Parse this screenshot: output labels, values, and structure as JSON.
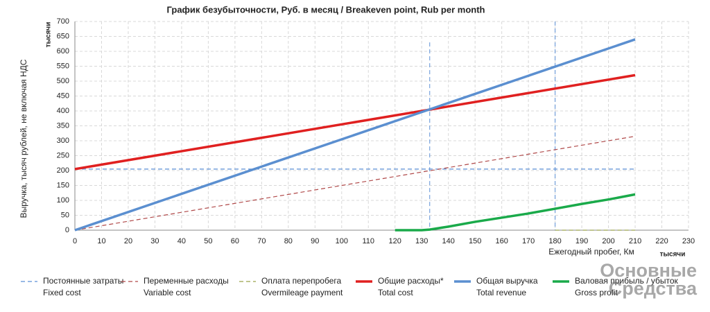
{
  "chart_data": {
    "type": "line",
    "title": "График безубыточности, Руб. в месяц / Breakeven point, Rub per month",
    "ylabel": "Выручка, тысяч рублей, не включая НДС",
    "yunit": "тысячи",
    "xlabel": "Ежегодный пробег, Км",
    "xunit": "тысячи",
    "xlim": [
      0,
      230
    ],
    "xticks": [
      0,
      10,
      20,
      30,
      40,
      50,
      60,
      70,
      80,
      90,
      100,
      110,
      120,
      130,
      140,
      150,
      160,
      170,
      180,
      190,
      200,
      210,
      220,
      230
    ],
    "ylim": [
      0,
      700
    ],
    "yticks": [
      0,
      50,
      100,
      150,
      200,
      250,
      300,
      350,
      400,
      450,
      500,
      550,
      600,
      650,
      700
    ],
    "grid": true,
    "vlines": [
      {
        "x": 133,
        "top": 630
      },
      {
        "x": 180,
        "top": 700
      }
    ],
    "series": [
      {
        "name": "Постоянные затраты",
        "name_en": "Fixed cost",
        "color": "#5b8fd6",
        "dash": true,
        "width": 1.2,
        "x": [
          0,
          210
        ],
        "values": [
          205,
          205
        ]
      },
      {
        "name": "Переменные расходы",
        "name_en": "Variable cost",
        "color": "#b04848",
        "dash": true,
        "width": 1.2,
        "x": [
          0,
          210
        ],
        "values": [
          0,
          315
        ]
      },
      {
        "name": "Оплата перепробега",
        "name_en": "Overmileage payment",
        "color": "#9aa54a",
        "dash": true,
        "width": 1.2,
        "x": [
          180,
          210
        ],
        "values": [
          0,
          0
        ]
      },
      {
        "name": "Общие расходы*",
        "name_en": "Total cost",
        "color": "#e02020",
        "dash": false,
        "width": 3.5,
        "x": [
          0,
          210
        ],
        "values": [
          205,
          520
        ]
      },
      {
        "name": "Общая выручка",
        "name_en": "Total revenue",
        "color": "#5b8fd0",
        "dash": false,
        "width": 3.5,
        "x": [
          0,
          210
        ],
        "values": [
          0,
          640
        ]
      },
      {
        "name": "Валовая прибыль / убыток",
        "name_en": "Gross profit",
        "color": "#1aaa4a",
        "dash": false,
        "width": 3.5,
        "x": [
          120,
          130,
          133,
          140,
          150,
          160,
          170,
          180,
          190,
          200,
          210
        ],
        "values": [
          0,
          0,
          2,
          12,
          28,
          42,
          56,
          72,
          88,
          103,
          120
        ]
      }
    ],
    "watermark": [
      "Основные",
      "Средства"
    ]
  }
}
